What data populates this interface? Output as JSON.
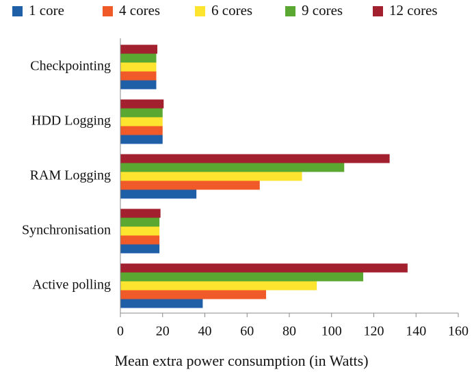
{
  "chart_data": {
    "type": "barh",
    "xlabel": "Mean extra power consumption (in Watts)",
    "categories": [
      "Checkpointing",
      "HDD Logging",
      "RAM Logging",
      "Synchronisation",
      "Active polling"
    ],
    "series": [
      {
        "name": "1 core",
        "color": "#1f5fa8",
        "values": [
          17,
          20,
          36,
          18.5,
          39
        ]
      },
      {
        "name": "4 cores",
        "color": "#f05a28",
        "values": [
          17,
          20,
          66,
          18.5,
          69
        ]
      },
      {
        "name": "6 cores",
        "color": "#fde42e",
        "values": [
          17,
          20,
          86,
          18.5,
          93
        ]
      },
      {
        "name": "9 cores",
        "color": "#5aa832",
        "values": [
          17,
          20,
          106,
          18.5,
          115
        ]
      },
      {
        "name": "12 cores",
        "color": "#a3212e",
        "values": [
          17.5,
          20.5,
          127.5,
          19,
          136
        ]
      }
    ],
    "xlim": [
      0,
      160
    ],
    "xticks": [
      0,
      20,
      40,
      60,
      80,
      100,
      120,
      140,
      160
    ],
    "legend": "top"
  }
}
